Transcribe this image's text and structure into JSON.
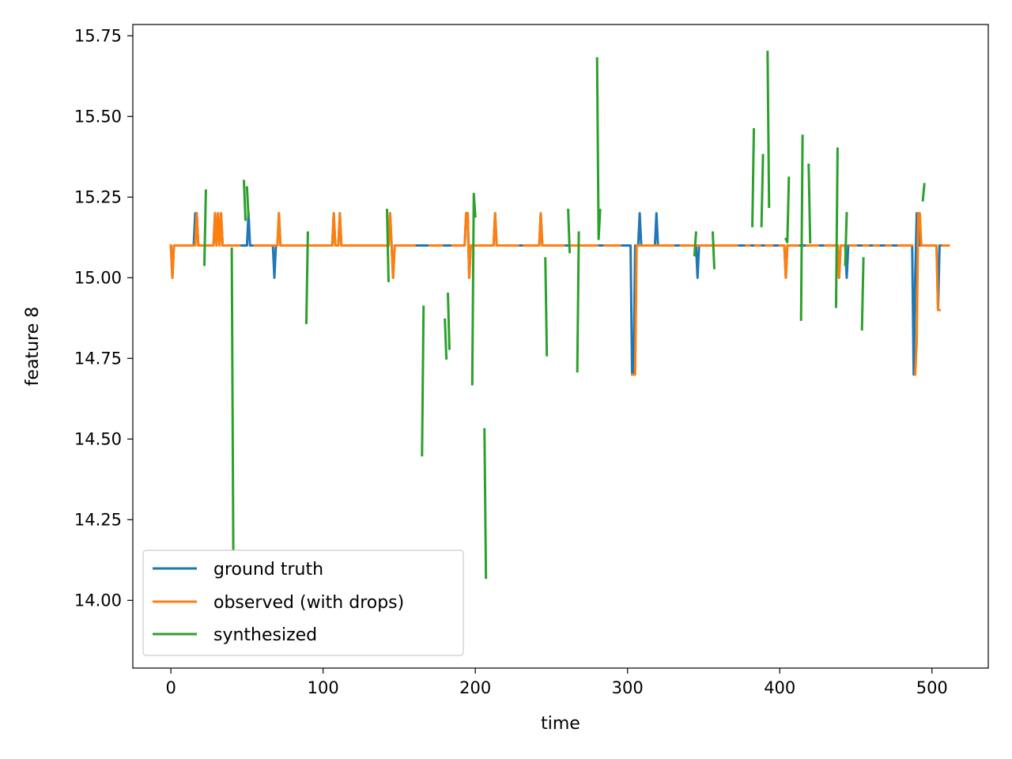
{
  "chart_data": {
    "type": "line",
    "title": "",
    "xlabel": "time",
    "ylabel": "feature 8",
    "xlim": [
      -25,
      537
    ],
    "ylim": [
      13.79,
      15.785
    ],
    "xticks": [
      0,
      100,
      200,
      300,
      400,
      500
    ],
    "yticks": [
      14.0,
      14.25,
      14.5,
      14.75,
      15.0,
      15.25,
      15.5,
      15.75
    ],
    "xtick_labels": [
      "0",
      "100",
      "200",
      "300",
      "400",
      "500"
    ],
    "ytick_labels": [
      "14.00",
      "14.25",
      "14.50",
      "14.75",
      "15.00",
      "15.25",
      "15.50",
      "15.75"
    ],
    "grid": false,
    "legend_position": "lower-left",
    "series": [
      {
        "name": "ground truth",
        "color": "#1f77b4",
        "segments": [
          [
            [
              0,
              15.1
            ],
            [
              1,
              15.0
            ],
            [
              2,
              15.1
            ],
            [
              15,
              15.1
            ],
            [
              16,
              15.2
            ],
            [
              17,
              15.2
            ],
            [
              18,
              15.1
            ],
            [
              28,
              15.1
            ],
            [
              29,
              15.2
            ],
            [
              30,
              15.1
            ],
            [
              31,
              15.2
            ],
            [
              32,
              15.1
            ],
            [
              33,
              15.2
            ],
            [
              34,
              15.1
            ],
            [
              50,
              15.1
            ],
            [
              51,
              15.2
            ],
            [
              52,
              15.1
            ],
            [
              67,
              15.1
            ],
            [
              68,
              15.0
            ],
            [
              69,
              15.1
            ],
            [
              70,
              15.1
            ],
            [
              71,
              15.2
            ],
            [
              72,
              15.1
            ],
            [
              106,
              15.1
            ],
            [
              107,
              15.2
            ],
            [
              108,
              15.1
            ],
            [
              110,
              15.1
            ],
            [
              111,
              15.2
            ],
            [
              112,
              15.1
            ],
            [
              143,
              15.1
            ],
            [
              144,
              15.2
            ],
            [
              145,
              15.1
            ],
            [
              146,
              15.0
            ],
            [
              147,
              15.1
            ],
            [
              193,
              15.1
            ],
            [
              194,
              15.2
            ],
            [
              195,
              15.2
            ],
            [
              196,
              15.0
            ],
            [
              197,
              15.1
            ],
            [
              212,
              15.1
            ],
            [
              213,
              15.2
            ],
            [
              214,
              15.1
            ],
            [
              242,
              15.1
            ],
            [
              243,
              15.2
            ],
            [
              244,
              15.1
            ],
            [
              302,
              15.1
            ],
            [
              303,
              14.7
            ],
            [
              304,
              14.7
            ],
            [
              305,
              15.1
            ],
            [
              307,
              15.1
            ],
            [
              308,
              15.2
            ],
            [
              309,
              15.1
            ],
            [
              318,
              15.1
            ],
            [
              319,
              15.2
            ],
            [
              320,
              15.1
            ],
            [
              345,
              15.1
            ],
            [
              346,
              15.0
            ],
            [
              347,
              15.1
            ],
            [
              403,
              15.1
            ],
            [
              404,
              15.0
            ],
            [
              405,
              15.1
            ],
            [
              438,
              15.1
            ],
            [
              439,
              15.0
            ],
            [
              440,
              15.1
            ],
            [
              443,
              15.1
            ],
            [
              444,
              15.0
            ],
            [
              445,
              15.1
            ],
            [
              487,
              15.1
            ],
            [
              488,
              14.7
            ],
            [
              489,
              15.0
            ],
            [
              490,
              15.2
            ],
            [
              491,
              15.2
            ],
            [
              492,
              15.1
            ],
            [
              503,
              15.1
            ],
            [
              504,
              14.9
            ],
            [
              505,
              15.1
            ],
            [
              511,
              15.1
            ]
          ]
        ]
      },
      {
        "name": "observed (with drops)",
        "color": "#ff7f0e",
        "segments": [
          [
            [
              0,
              15.1
            ],
            [
              1,
              15.0
            ],
            [
              2,
              15.1
            ],
            [
              16,
              15.1
            ],
            [
              17,
              15.2
            ],
            [
              18,
              15.1
            ],
            [
              28,
              15.1
            ],
            [
              29,
              15.2
            ],
            [
              30,
              15.1
            ],
            [
              31,
              15.2
            ],
            [
              32,
              15.1
            ],
            [
              33,
              15.2
            ],
            [
              34,
              15.1
            ],
            [
              45,
              15.1
            ]
          ],
          [
            [
              55,
              15.1
            ],
            [
              70,
              15.1
            ],
            [
              71,
              15.2
            ],
            [
              72,
              15.1
            ],
            [
              106,
              15.1
            ],
            [
              107,
              15.2
            ],
            [
              108,
              15.1
            ],
            [
              110,
              15.1
            ],
            [
              111,
              15.2
            ],
            [
              112,
              15.1
            ],
            [
              143,
              15.1
            ],
            [
              144,
              15.2
            ],
            [
              145,
              15.1
            ],
            [
              146,
              15.0
            ],
            [
              147,
              15.1
            ],
            [
              160,
              15.1
            ]
          ],
          [
            [
              170,
              15.1
            ],
            [
              178,
              15.1
            ]
          ],
          [
            [
              185,
              15.1
            ],
            [
              193,
              15.1
            ],
            [
              194,
              15.2
            ],
            [
              195,
              15.2
            ],
            [
              196,
              15.0
            ],
            [
              197,
              15.1
            ],
            [
              212,
              15.1
            ],
            [
              213,
              15.2
            ],
            [
              214,
              15.1
            ],
            [
              228,
              15.1
            ]
          ],
          [
            [
              232,
              15.1
            ],
            [
              242,
              15.1
            ],
            [
              243,
              15.2
            ],
            [
              244,
              15.1
            ],
            [
              258,
              15.1
            ]
          ],
          [
            [
              262,
              15.1
            ],
            [
              280,
              15.1
            ]
          ],
          [
            [
              285,
              15.1
            ],
            [
              295,
              15.1
            ]
          ],
          [
            [
              303,
              14.7
            ],
            [
              304,
              14.7
            ],
            [
              305,
              14.7
            ],
            [
              306,
              15.1
            ],
            [
              330,
              15.1
            ]
          ],
          [
            [
              335,
              15.1
            ],
            [
              372,
              15.1
            ]
          ],
          [
            [
              378,
              15.1
            ],
            [
              380,
              15.1
            ]
          ],
          [
            [
              384,
              15.1
            ],
            [
              387,
              15.1
            ]
          ],
          [
            [
              391,
              15.1
            ],
            [
              395,
              15.1
            ]
          ],
          [
            [
              400,
              15.1
            ],
            [
              403,
              15.1
            ],
            [
              404,
              15.0
            ],
            [
              405,
              15.1
            ],
            [
              412,
              15.1
            ]
          ],
          [
            [
              418,
              15.1
            ],
            [
              425,
              15.1
            ]
          ],
          [
            [
              430,
              15.1
            ],
            [
              438,
              15.1
            ],
            [
              439,
              15.0
            ],
            [
              440,
              15.1
            ],
            [
              442,
              15.1
            ]
          ],
          [
            [
              446,
              15.1
            ],
            [
              450,
              15.1
            ]
          ],
          [
            [
              455,
              15.1
            ],
            [
              458,
              15.1
            ]
          ],
          [
            [
              462,
              15.1
            ],
            [
              465,
              15.1
            ]
          ],
          [
            [
              470,
              15.1
            ],
            [
              473,
              15.1
            ]
          ],
          [
            [
              478,
              15.1
            ],
            [
              487,
              15.1
            ]
          ],
          [
            [
              489,
              14.7
            ],
            [
              490,
              14.8
            ],
            [
              491,
              15.2
            ],
            [
              492,
              15.2
            ],
            [
              493,
              15.1
            ],
            [
              503,
              15.1
            ],
            [
              504,
              14.9
            ],
            [
              505,
              14.9
            ]
          ],
          [
            [
              507,
              15.1
            ],
            [
              511,
              15.1
            ]
          ]
        ]
      },
      {
        "name": "synthesized",
        "color": "#2ca02c",
        "segments": [
          [
            [
              22,
              15.04
            ],
            [
              23,
              15.27
            ]
          ],
          [
            [
              40,
              15.09
            ],
            [
              41,
              14.16
            ]
          ],
          [
            [
              48,
              15.3
            ],
            [
              49,
              15.18
            ]
          ],
          [
            [
              50,
              15.28
            ],
            [
              51,
              15.19
            ]
          ],
          [
            [
              89,
              14.86
            ],
            [
              90,
              15.14
            ]
          ],
          [
            [
              142,
              15.21
            ],
            [
              143,
              14.99
            ]
          ],
          [
            [
              165,
              14.45
            ],
            [
              166,
              14.91
            ]
          ],
          [
            [
              180,
              14.87
            ],
            [
              181,
              14.75
            ]
          ],
          [
            [
              182,
              14.95
            ],
            [
              183,
              14.78
            ]
          ],
          [
            [
              198,
              14.67
            ],
            [
              199,
              15.26
            ],
            [
              200,
              15.19
            ]
          ],
          [
            [
              206,
              14.53
            ],
            [
              207,
              14.07
            ]
          ],
          [
            [
              246,
              15.06
            ],
            [
              247,
              14.76
            ]
          ],
          [
            [
              261,
              15.21
            ],
            [
              262,
              15.08
            ]
          ],
          [
            [
              267,
              14.71
            ],
            [
              268,
              15.14
            ]
          ],
          [
            [
              280,
              15.68
            ],
            [
              281,
              15.12
            ],
            [
              282,
              15.21
            ]
          ],
          [
            [
              344,
              15.07
            ],
            [
              345,
              15.14
            ]
          ],
          [
            [
              356,
              15.14
            ],
            [
              357,
              15.03
            ]
          ],
          [
            [
              382,
              15.16
            ],
            [
              383,
              15.46
            ]
          ],
          [
            [
              388,
              15.16
            ],
            [
              389,
              15.38
            ]
          ],
          [
            [
              392,
              15.7
            ],
            [
              393,
              15.22
            ]
          ],
          [
            [
              404,
              15.12
            ],
            [
              405,
              15.11
            ],
            [
              406,
              15.31
            ]
          ],
          [
            [
              414,
              14.87
            ],
            [
              415,
              15.44
            ]
          ],
          [
            [
              419,
              15.35
            ],
            [
              420,
              15.11
            ]
          ],
          [
            [
              437,
              14.91
            ],
            [
              438,
              15.4
            ]
          ],
          [
            [
              443,
              15.04
            ],
            [
              444,
              15.2
            ]
          ],
          [
            [
              454,
              14.84
            ],
            [
              455,
              15.06
            ]
          ],
          [
            [
              494,
              15.24
            ],
            [
              495,
              15.29
            ]
          ]
        ]
      }
    ]
  }
}
